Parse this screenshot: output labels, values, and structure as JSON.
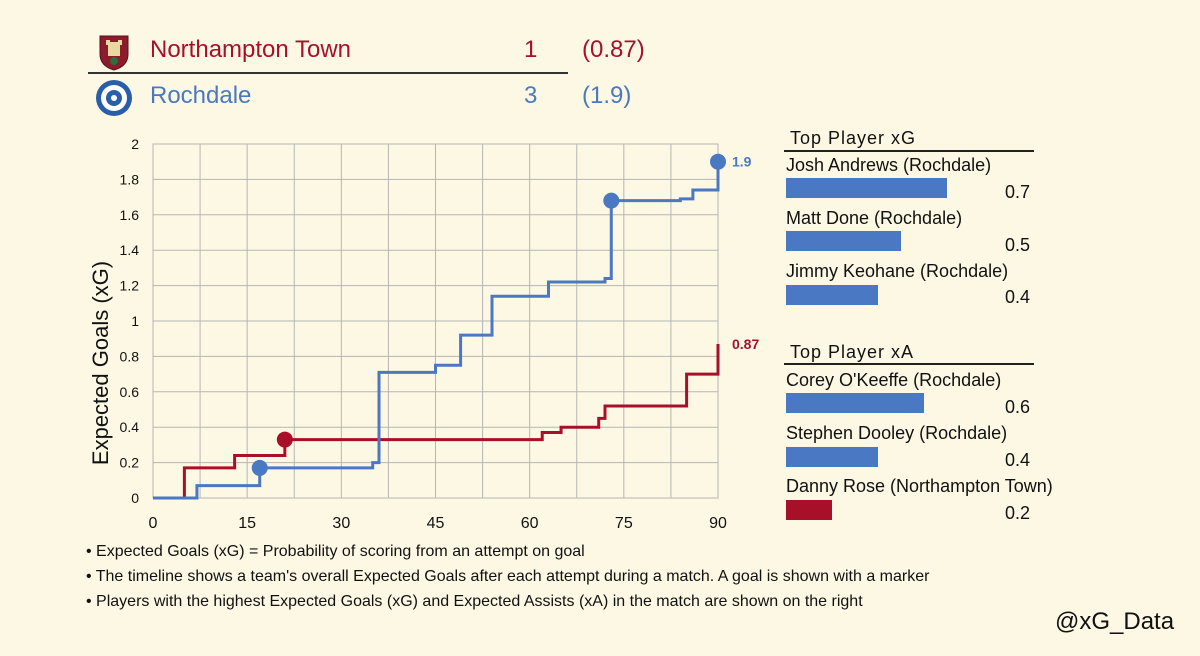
{
  "header": {
    "home": {
      "name": "Northampton Town",
      "goals": "1",
      "xg": "(0.87)",
      "color": "#a8102a",
      "crest_icon": "northampton-crest-icon"
    },
    "away": {
      "name": "Rochdale",
      "goals": "3",
      "xg": "(1.9)",
      "color": "#4a78c2",
      "crest_icon": "rochdale-crest-icon"
    }
  },
  "chart_data": {
    "type": "line",
    "ylabel": "Expected Goals (xG)",
    "xlabel": "",
    "xlim": [
      0,
      90
    ],
    "ylim": [
      0,
      2
    ],
    "xticks": [
      0,
      15,
      30,
      45,
      60,
      75,
      90
    ],
    "yticks": [
      0,
      0.2,
      0.4,
      0.6,
      0.8,
      1,
      1.2,
      1.4,
      1.6,
      1.8,
      2
    ],
    "grid": true,
    "series": [
      {
        "name": "Northampton Town",
        "color": "#a8102a",
        "step": true,
        "x": [
          0,
          5,
          13,
          21,
          62,
          65,
          71,
          72,
          85,
          90
        ],
        "y": [
          0,
          0.17,
          0.24,
          0.33,
          0.37,
          0.4,
          0.45,
          0.52,
          0.7,
          0.87
        ],
        "goal_markers": [
          {
            "x": 21,
            "y": 0.33
          }
        ],
        "end_label": "0.87"
      },
      {
        "name": "Rochdale",
        "color": "#4a78c2",
        "step": true,
        "x": [
          0,
          7,
          17,
          35,
          36,
          45,
          49,
          54,
          63,
          72,
          73,
          84,
          86,
          90
        ],
        "y": [
          0,
          0.07,
          0.17,
          0.2,
          0.71,
          0.75,
          0.92,
          1.14,
          1.22,
          1.24,
          1.68,
          1.69,
          1.74,
          1.9
        ],
        "goal_markers": [
          {
            "x": 17,
            "y": 0.17
          },
          {
            "x": 73,
            "y": 1.68
          },
          {
            "x": 90,
            "y": 1.9
          }
        ],
        "end_label": "1.9"
      }
    ]
  },
  "top_xg": {
    "title": "Top Player xG",
    "players": [
      {
        "name": "Josh Andrews (Rochdale)",
        "value": 0.7,
        "label": "0.7",
        "color": "#4a78c2"
      },
      {
        "name": "Matt Done (Rochdale)",
        "value": 0.5,
        "label": "0.5",
        "color": "#4a78c2"
      },
      {
        "name": "Jimmy Keohane (Rochdale)",
        "value": 0.4,
        "label": "0.4",
        "color": "#4a78c2"
      }
    ]
  },
  "top_xa": {
    "title": "Top Player xA",
    "players": [
      {
        "name": "Corey O'Keeffe (Rochdale)",
        "value": 0.6,
        "label": "0.6",
        "color": "#4a78c2"
      },
      {
        "name": "Stephen Dooley (Rochdale)",
        "value": 0.4,
        "label": "0.4",
        "color": "#4a78c2"
      },
      {
        "name": "Danny Rose (Northampton Town)",
        "value": 0.2,
        "label": "0.2",
        "color": "#a8102a"
      }
    ]
  },
  "notes": [
    "• Expected Goals (xG) = Probability of scoring from an attempt on goal",
    "• The timeline shows a team's overall Expected Goals after each attempt during a match. A goal is shown with a marker",
    "• Players with the highest Expected Goals (xG) and Expected Assists (xA) in the match are shown on the right"
  ],
  "handle": "@xG_Data"
}
